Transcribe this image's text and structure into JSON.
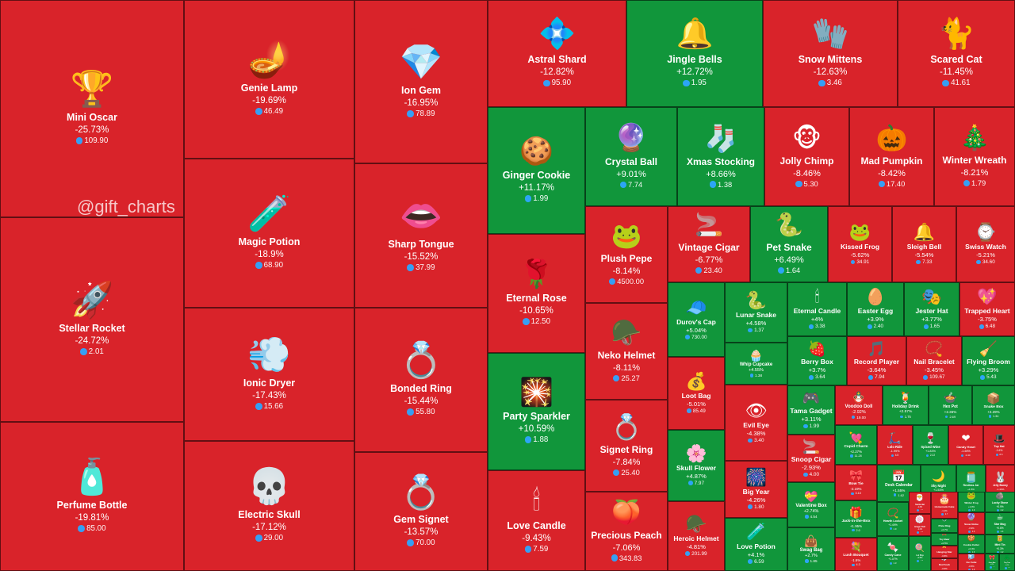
{
  "watermark": "@gift_charts",
  "colors": {
    "down": "#d9232a",
    "up": "#11963b",
    "neutral": "#9aa39c",
    "price_icon": "#2ea6ff"
  },
  "chart_data": {
    "type": "treemap",
    "price_icon": "ton-diamond-icon",
    "items": [
      {
        "name": "Mini Oscar",
        "change": "-25.73%",
        "price": "109.90",
        "icon": "oscar-statue-icon",
        "dir": "down"
      },
      {
        "name": "Stellar Rocket",
        "change": "-24.72%",
        "price": "2.01",
        "icon": "rocket-icon",
        "dir": "down"
      },
      {
        "name": "Perfume Bottle",
        "change": "-19.81%",
        "price": "85.00",
        "icon": "perfume-bottle-icon",
        "dir": "down"
      },
      {
        "name": "Genie Lamp",
        "change": "-19.69%",
        "price": "46.49",
        "icon": "genie-lamp-icon",
        "dir": "down"
      },
      {
        "name": "Magic Potion",
        "change": "-18.9%",
        "price": "68.90",
        "icon": "potion-bottle-icon",
        "dir": "down"
      },
      {
        "name": "Ionic Dryer",
        "change": "-17.43%",
        "price": "15.66",
        "icon": "hair-dryer-icon",
        "dir": "down"
      },
      {
        "name": "Electric Skull",
        "change": "-17.12%",
        "price": "29.00",
        "icon": "skull-icon",
        "dir": "down"
      },
      {
        "name": "Ion Gem",
        "change": "-16.95%",
        "price": "78.89",
        "icon": "crystal-gem-icon",
        "dir": "down"
      },
      {
        "name": "Sharp Tongue",
        "change": "-15.52%",
        "price": "37.99",
        "icon": "vampire-mouth-icon",
        "dir": "down"
      },
      {
        "name": "Bonded Ring",
        "change": "-15.44%",
        "price": "55.80",
        "icon": "gold-ring-icon",
        "dir": "down"
      },
      {
        "name": "Gem Signet",
        "change": "-13.57%",
        "price": "70.00",
        "icon": "gem-ring-icon",
        "dir": "down"
      },
      {
        "name": "Astral Shard",
        "change": "-12.82%",
        "price": "95.90",
        "icon": "crystal-shard-icon",
        "dir": "down"
      },
      {
        "name": "Jingle Bells",
        "change": "+12.72%",
        "price": "1.95",
        "icon": "bells-icon",
        "dir": "up"
      },
      {
        "name": "Snow Mittens",
        "change": "-12.63%",
        "price": "3.46",
        "icon": "mittens-icon",
        "dir": "down"
      },
      {
        "name": "Scared Cat",
        "change": "-11.45%",
        "price": "41.61",
        "icon": "black-cat-icon",
        "dir": "down"
      },
      {
        "name": "Ginger Cookie",
        "change": "+11.17%",
        "price": "1.99",
        "icon": "gingerbread-icon",
        "dir": "up"
      },
      {
        "name": "Crystal Ball",
        "change": "+9.01%",
        "price": "7.74",
        "icon": "crystal-ball-icon",
        "dir": "up"
      },
      {
        "name": "Xmas Stocking",
        "change": "+8.66%",
        "price": "1.38",
        "icon": "stocking-icon",
        "dir": "up"
      },
      {
        "name": "Jolly Chimp",
        "change": "-8.46%",
        "price": "5.30",
        "icon": "monkey-icon",
        "dir": "down"
      },
      {
        "name": "Mad Pumpkin",
        "change": "-8.42%",
        "price": "17.40",
        "icon": "pumpkin-icon",
        "dir": "down"
      },
      {
        "name": "Winter Wreath",
        "change": "-8.21%",
        "price": "1.79",
        "icon": "wreath-icon",
        "dir": "down"
      },
      {
        "name": "Eternal Rose",
        "change": "-10.65%",
        "price": "12.50",
        "icon": "rose-dome-icon",
        "dir": "down"
      },
      {
        "name": "Plush Pepe",
        "change": "-8.14%",
        "price": "4500.00",
        "icon": "frog-plush-icon",
        "dir": "down"
      },
      {
        "name": "Vintage Cigar",
        "change": "-6.77%",
        "price": "23.40",
        "icon": "cigar-icon",
        "dir": "down"
      },
      {
        "name": "Pet Snake",
        "change": "+6.49%",
        "price": "1.64",
        "icon": "snake-icon",
        "dir": "up"
      },
      {
        "name": "Kissed Frog",
        "change": "-5.62%",
        "price": "34.91",
        "icon": "frog-icon",
        "dir": "down"
      },
      {
        "name": "Sleigh Bell",
        "change": "-5.54%",
        "price": "7.33",
        "icon": "sleigh-bell-icon",
        "dir": "down"
      },
      {
        "name": "Swiss Watch",
        "change": "-5.21%",
        "price": "34.60",
        "icon": "watch-icon",
        "dir": "down"
      },
      {
        "name": "Party Sparkler",
        "change": "+10.59%",
        "price": "1.88",
        "icon": "sparkler-icon",
        "dir": "up"
      },
      {
        "name": "Neko Helmet",
        "change": "-8.11%",
        "price": "25.27",
        "icon": "cat-helmet-icon",
        "dir": "down"
      },
      {
        "name": "Durov's Cap",
        "change": "+5.04%",
        "price": "730.00",
        "icon": "cap-icon",
        "dir": "up"
      },
      {
        "name": "Lunar Snake",
        "change": "+4.58%",
        "price": "1.37",
        "icon": "lunar-snake-icon",
        "dir": "up"
      },
      {
        "name": "Eternal Candle",
        "change": "+4%",
        "price": "3.38",
        "icon": "candle-icon",
        "dir": "up"
      },
      {
        "name": "Easter Egg",
        "change": "+3.9%",
        "price": "2.40",
        "icon": "easter-egg-icon",
        "dir": "up"
      },
      {
        "name": "Jester Hat",
        "change": "+3.77%",
        "price": "1.65",
        "icon": "jester-hat-icon",
        "dir": "up"
      },
      {
        "name": "Trapped Heart",
        "change": "-3.75%",
        "price": "6.48",
        "icon": "heart-icon",
        "dir": "down"
      },
      {
        "name": "Whip Cupcake",
        "change": "+4.55%",
        "price": "1.38",
        "icon": "cupcake-icon",
        "dir": "up"
      },
      {
        "name": "Berry Box",
        "change": "+3.7%",
        "price": "3.64",
        "icon": "berry-box-icon",
        "dir": "up"
      },
      {
        "name": "Record Player",
        "change": "-3.64%",
        "price": "7.94",
        "icon": "record-player-icon",
        "dir": "down"
      },
      {
        "name": "Nail Bracelet",
        "change": "-3.45%",
        "price": "109.67",
        "icon": "bracelet-icon",
        "dir": "down"
      },
      {
        "name": "Flying Broom",
        "change": "+3.29%",
        "price": "5.43",
        "icon": "broom-icon",
        "dir": "up"
      },
      {
        "name": "Loot Bag",
        "change": "-5.01%",
        "price": "85.49",
        "icon": "loot-bag-icon",
        "dir": "down"
      },
      {
        "name": "Love Candle",
        "change": "-9.43%",
        "price": "7.59",
        "icon": "love-candle-icon",
        "dir": "down"
      },
      {
        "name": "Signet Ring",
        "change": "-7.84%",
        "price": "25.40",
        "icon": "signet-ring-icon",
        "dir": "down"
      },
      {
        "name": "Tama Gadget",
        "change": "+3.11%",
        "price": "1.99",
        "icon": "tamagotchi-icon",
        "dir": "up"
      },
      {
        "name": "Voodoo Doll",
        "change": "-2.92%",
        "price": "19.00",
        "icon": "voodoo-doll-icon",
        "dir": "down"
      },
      {
        "name": "Holiday Drink",
        "change": "+2.57%",
        "price": "1.75",
        "icon": "drink-icon",
        "dir": "up"
      },
      {
        "name": "Hex Pot",
        "change": "+2.36%",
        "price": "2.69",
        "icon": "cauldron-icon",
        "dir": "up"
      },
      {
        "name": "Snake Box",
        "change": "+2.29%",
        "price": "1.34",
        "icon": "snake-box-icon",
        "dir": "up"
      },
      {
        "name": "Evil Eye",
        "change": "-4.38%",
        "price": "3.40",
        "icon": "eye-icon",
        "dir": "down"
      },
      {
        "name": "Skull Flower",
        "change": "+4.87%",
        "price": "7.97",
        "icon": "skull-flower-icon",
        "dir": "up"
      },
      {
        "name": "Snoop Cigar",
        "change": "-2.93%",
        "price": "4.00",
        "icon": "snoop-cigar-icon",
        "dir": "down"
      },
      {
        "name": "Cupid Charm",
        "change": "+2.27%",
        "price": "11.28",
        "icon": "cupid-charm-icon",
        "dir": "up"
      },
      {
        "name": "Lolo Ride",
        "change": "-1.99%",
        "price": "4.5",
        "icon": "ride-icon",
        "dir": "down"
      },
      {
        "name": "Spiced Wine",
        "change": "+1.83%",
        "price": "2.22",
        "icon": "wine-icon",
        "dir": "up"
      },
      {
        "name": "Candy Heart",
        "change": "-1.69%",
        "price": "2.40",
        "icon": "candy-heart-icon",
        "dir": "down"
      },
      {
        "name": "Top Hat",
        "change": "-1.6%",
        "price": "8.5",
        "icon": "top-hat-icon",
        "dir": "down"
      },
      {
        "name": "Big Year",
        "change": "-4.26%",
        "price": "1.80",
        "icon": "big-year-icon",
        "dir": "down"
      },
      {
        "name": "Precious Peach",
        "change": "-7.06%",
        "price": "343.83",
        "icon": "peach-icon",
        "dir": "down"
      },
      {
        "name": "Bow Tie",
        "change": "-2.19%",
        "price": "3.10",
        "icon": "bow-tie-icon",
        "dir": "down"
      },
      {
        "name": "Desk Calendar",
        "change": "+1.55%",
        "price": "1.62",
        "icon": "calendar-icon",
        "dir": "up"
      },
      {
        "name": "Sky Night",
        "change": "+1.53%",
        "price": "1.2",
        "icon": "night-icon",
        "dir": "up"
      },
      {
        "name": "Restless Jar",
        "change": "+1.5%",
        "price": "2.2",
        "icon": "jar-icon",
        "dir": "up"
      },
      {
        "name": "Jelly Bunny",
        "change": "-1.44%",
        "price": "3.1",
        "icon": "bunny-icon",
        "dir": "down"
      },
      {
        "name": "Heroic Helmet",
        "change": "-4.81%",
        "price": "201.99",
        "icon": "spartan-helmet-icon",
        "dir": "down"
      },
      {
        "name": "Love Potion",
        "change": "+4.1%",
        "price": "6.59",
        "icon": "love-potion-icon",
        "dir": "up"
      },
      {
        "name": "Valentine Box",
        "change": "+2.74%",
        "price": "4.54",
        "icon": "valentine-box-icon",
        "dir": "up"
      },
      {
        "name": "Swag Bag",
        "change": "+2.7%",
        "price": "1.85",
        "icon": "swag-bag-icon",
        "dir": "up"
      },
      {
        "name": "Jack-in-the-Box",
        "change": "+1.95%",
        "price": "2.0",
        "icon": "jack-box-icon",
        "dir": "up"
      },
      {
        "name": "Hearth Locket",
        "change": "+1.49%",
        "price": "1.9",
        "icon": "locket-icon",
        "dir": "up"
      },
      {
        "name": "Lush Bouquet",
        "change": "-1.6%",
        "price": "4.3",
        "icon": "bouquet-icon",
        "dir": "down"
      },
      {
        "name": "Candy Cane",
        "change": "+1.07%",
        "price": "1.3",
        "icon": "candy-cane-icon",
        "dir": "up"
      },
      {
        "name": "Santa Hat",
        "change": "-1.3%",
        "price": "2.1",
        "icon": "santa-hat-icon",
        "dir": "down"
      },
      {
        "name": "Ginger Roll",
        "change": "-1.2%",
        "price": "1.5",
        "icon": "ginger-roll-icon",
        "dir": "down"
      },
      {
        "name": "Homemade Cake",
        "change": "-1.1%",
        "price": "2.7",
        "icon": "cake-icon",
        "dir": "down"
      },
      {
        "name": "Winter Frog",
        "change": "+1.0%",
        "price": "1.9",
        "icon": "winter-frog-icon",
        "dir": "up"
      },
      {
        "name": "Lucky Stone",
        "change": "+0.9%",
        "price": "2.2",
        "icon": "stone-icon",
        "dir": "up"
      },
      {
        "name": "Lol Pop",
        "change": "+0.8%",
        "price": "1.3",
        "icon": "lollipop-icon",
        "dir": "up"
      },
      {
        "name": "Pixie Ring",
        "change": "+0.7%",
        "price": "1.1",
        "icon": "pixie-ring-icon",
        "dir": "up"
      },
      {
        "name": "Snow Globe",
        "change": "-0.9%",
        "price": "2.9",
        "icon": "snow-globe-icon",
        "dir": "down"
      },
      {
        "name": "Star Mug",
        "change": "+0.6%",
        "price": "1.4",
        "icon": "mug-icon",
        "dir": "up"
      },
      {
        "name": "Toy Bear",
        "change": "+0.5%",
        "price": "2.6",
        "icon": "bear-icon",
        "dir": "up"
      },
      {
        "name": "Hanging Star",
        "change": "-0.8%",
        "price": "3.2",
        "icon": "star-icon",
        "dir": "down"
      },
      {
        "name": "Cookie Cutter",
        "change": "+0.4%",
        "price": "1.6",
        "icon": "cookie-icon",
        "dir": "up"
      },
      {
        "name": "Mint Tin",
        "change": "+0.3%",
        "price": "1.2",
        "icon": "tin-icon",
        "dir": "up"
      },
      {
        "name": "Red Sock",
        "change": "-0.6%",
        "price": "1.5",
        "icon": "sock-icon",
        "dir": "down"
      },
      {
        "name": "Ice Cube",
        "change": "-0.5%",
        "price": "1.9",
        "icon": "cube-icon",
        "dir": "down"
      },
      {
        "name": "Green Bow",
        "change": "+0.2%",
        "price": "1.1",
        "icon": "bow-icon",
        "dir": "up"
      },
      {
        "name": "Tiny Tree",
        "change": "+0.2%",
        "price": "1.4",
        "icon": "tree-icon",
        "dir": "up"
      },
      {
        "name": "Grey Box",
        "change": "0%",
        "price": "1.0",
        "icon": "box-icon",
        "dir": "neutral"
      },
      {
        "name": "Mini Flask",
        "change": "0%",
        "price": "1.2",
        "icon": "flask-icon",
        "dir": "neutral"
      }
    ]
  }
}
